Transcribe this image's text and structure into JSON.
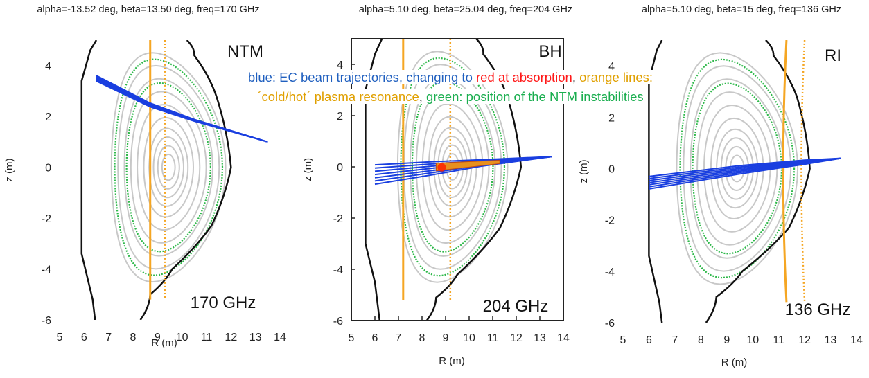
{
  "chart_data": [
    {
      "type": "line",
      "title": "alpha=-13.52 deg, beta=13.50 deg, freq=170 GHz",
      "xlabel": "R (m)",
      "ylabel": "z (m)",
      "xlim": [
        5,
        14
      ],
      "ylim": [
        -6,
        5
      ],
      "xticks": [
        "5",
        "6",
        "7",
        "8",
        "9",
        "10",
        "11",
        "12",
        "13",
        "14"
      ],
      "yticks": [
        "-6",
        "-4",
        "-2",
        "0",
        "2",
        "4"
      ],
      "corner_label": "NTM",
      "freq_label": "170 GHz",
      "axis": {
        "R": 9.45,
        "z": 0.0
      },
      "flux_surfaces": {
        "grey_a": [
          0.3,
          0.5,
          0.7,
          0.9,
          1.15,
          1.45,
          1.75,
          2.05,
          2.35,
          2.65
        ],
        "green_a": [
          1.95,
          2.5
        ]
      },
      "wall": [
        [
          6.45,
          -6
        ],
        [
          6.35,
          -5.2
        ],
        [
          5.9,
          -3.4
        ],
        [
          5.9,
          3.4
        ],
        [
          6.25,
          4.6
        ],
        [
          6.5,
          5.0
        ]
      ],
      "separatrix": [
        [
          8.3,
          -6
        ],
        [
          8.7,
          -5
        ],
        [
          9.6,
          -4.0
        ],
        [
          11.2,
          -2.3
        ],
        [
          12.0,
          0
        ],
        [
          11.4,
          2.8
        ],
        [
          10.5,
          4.4
        ],
        [
          10.2,
          5.0
        ]
      ],
      "cold_resonance_R": 8.7,
      "hot_resonance_R": 9.3,
      "resonance_z": [
        -5.2,
        5.0
      ],
      "beam": [
        [
          6.5,
          3.5
        ],
        [
          8.7,
          2.45
        ],
        [
          10.5,
          1.85
        ],
        [
          13.5,
          1.0
        ]
      ]
    },
    {
      "type": "line",
      "title": "alpha=5.10 deg, beta=25.04 deg, freq=204 GHz",
      "xlabel": "R (m)",
      "ylabel": "z (m)",
      "xlim": [
        5,
        14
      ],
      "ylim": [
        -6,
        5
      ],
      "xticks": [
        "5",
        "6",
        "7",
        "8",
        "9",
        "10",
        "11",
        "12",
        "13",
        "14"
      ],
      "yticks": [
        "-6",
        "-4",
        "-2",
        "0",
        "2",
        "4"
      ],
      "corner_label": "BH",
      "freq_label": "204 GHz",
      "axis": {
        "R": 9.3,
        "z": 0.0
      },
      "flux_surfaces": {
        "grey_a": [
          0.3,
          0.5,
          0.7,
          0.9,
          1.15,
          1.45,
          1.75,
          2.05,
          2.35,
          2.65
        ],
        "green_a": [
          1.95,
          2.5
        ]
      },
      "wall": [
        [
          6.2,
          -6
        ],
        [
          6.0,
          -4.5
        ],
        [
          5.6,
          -3.0
        ],
        [
          5.6,
          3.0
        ],
        [
          6.0,
          4.4
        ],
        [
          6.3,
          5.0
        ]
      ],
      "separatrix": [
        [
          8.2,
          -6
        ],
        [
          8.6,
          -5.1
        ],
        [
          9.5,
          -4.2
        ],
        [
          11.3,
          -2.4
        ],
        [
          12.2,
          0
        ],
        [
          11.6,
          2.8
        ],
        [
          10.6,
          4.4
        ],
        [
          10.3,
          5.0
        ]
      ],
      "cold_resonance_R": 7.2,
      "hot_resonance_R": 9.2,
      "resonance_z": [
        -5.2,
        5.0
      ],
      "beam": [
        [
          6.0,
          -0.3
        ],
        [
          8.5,
          -0.05
        ],
        [
          10.5,
          0.15
        ],
        [
          13.5,
          0.4
        ]
      ],
      "absorption_range_R": [
        8.6,
        11.3
      ]
    },
    {
      "type": "line",
      "title": "alpha=5.10 deg, beta=15 deg, freq=136 GHz",
      "xlabel": "R (m)",
      "ylabel": "z (m)",
      "xlim": [
        5,
        14
      ],
      "ylim": [
        -6,
        5
      ],
      "xticks": [
        "5",
        "6",
        "7",
        "8",
        "9",
        "10",
        "11",
        "12",
        "13",
        "14"
      ],
      "yticks": [
        "-6",
        "-4",
        "-2",
        "0",
        "2",
        "4"
      ],
      "corner_label": "RI",
      "freq_label": "136 GHz",
      "axis": {
        "R": 9.4,
        "z": 0.0
      },
      "flux_surfaces": {
        "grey_a": [
          0.3,
          0.5,
          0.7,
          0.9,
          1.15,
          1.45,
          1.75,
          2.05,
          2.35,
          2.65
        ],
        "green_a": [
          1.95,
          2.5
        ]
      },
      "wall": [
        [
          6.5,
          -6
        ],
        [
          6.4,
          -5.2
        ],
        [
          6.0,
          -3.4
        ],
        [
          6.0,
          3.4
        ],
        [
          6.3,
          4.6
        ],
        [
          6.5,
          5.0
        ]
      ],
      "separatrix": [
        [
          8.2,
          -6
        ],
        [
          8.6,
          -5.0
        ],
        [
          9.6,
          -4.0
        ],
        [
          11.4,
          -2.3
        ],
        [
          12.2,
          0
        ],
        [
          11.7,
          2.8
        ],
        [
          10.8,
          4.4
        ],
        [
          10.5,
          5.0
        ]
      ],
      "cold_resonance_R": 11.3,
      "hot_resonance_R": 12.0,
      "resonance_z": [
        -5.2,
        5.0
      ],
      "beam": [
        [
          6.0,
          -0.55
        ],
        [
          9.5,
          -0.05
        ],
        [
          12.0,
          0.25
        ],
        [
          13.4,
          0.4
        ]
      ]
    }
  ],
  "legend": {
    "line1": [
      {
        "text": "blue: EC beam trajectories, changing to ",
        "color": "blue"
      },
      {
        "text": "red at absorption",
        "color": "red"
      },
      {
        "text": ", ",
        "color": "dark"
      },
      {
        "text": "orange lines:",
        "color": "orange"
      }
    ],
    "line2": [
      {
        "text": "´cold/hot´ plasma resonance",
        "color": "orange"
      },
      {
        "text": ", ",
        "color": "dark"
      },
      {
        "text": "green: position of the NTM instabilities",
        "color": "green"
      }
    ]
  },
  "colors": {
    "beam": "#1a3fe0",
    "absorption": "#ff2200",
    "resonance": "#f5a623",
    "ntm_surface": "#2eb84a",
    "flux_surface": "#c8c8c8",
    "wall": "#111111"
  }
}
